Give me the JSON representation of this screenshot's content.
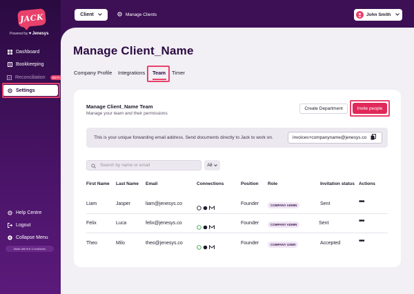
{
  "brand": {
    "logo_text": "JACK",
    "powered_prefix": "Powered by",
    "powered_brand": "Jenesys"
  },
  "sidebar": {
    "items": [
      {
        "label": "Dashboard",
        "icon": "grid-icon"
      },
      {
        "label": "Bookkeeping",
        "icon": "book-icon"
      },
      {
        "label": "Reconciliation",
        "icon": "reconcile-icon",
        "badge": "BETA"
      },
      {
        "label": "Settings",
        "icon": "gear-icon"
      }
    ],
    "bottom_items": [
      {
        "label": "Help Centre",
        "icon": "gear-icon"
      },
      {
        "label": "Logout",
        "icon": "logout-icon"
      },
      {
        "label": "Collapse Menu",
        "icon": "collapse-icon"
      }
    ],
    "made_with": "Made with ♥ in 3 continents"
  },
  "topbar": {
    "client_label": "Client",
    "manage_clients": "Manage Clients",
    "user_name": "John Smith"
  },
  "page": {
    "title": "Manage Client_Name",
    "tabs": [
      "Company Profile",
      "Integrations",
      "Team",
      "Timer"
    ]
  },
  "team": {
    "title": "Manage Client_Name Team",
    "subtitle": "Manage your  team and their permissions",
    "create_department": "Create Department",
    "invite_people": "Invite people",
    "email_notice": "This is your unique forwarding email address. Send documents directly to Jack to work on.",
    "forward_email": "invoices+companyname@jenesys.co",
    "search_placeholder": "Search by name or email",
    "filter_value": "All",
    "columns": [
      "First Name",
      "Last Name",
      "Email",
      "Connections",
      "Position",
      "Role",
      "Invitation status",
      "Actions"
    ],
    "rows": [
      {
        "first": "Liam",
        "last": "Jasper",
        "email": "liam@jenesys.co",
        "position": "Founder",
        "role": "COMPANY ADMIN",
        "status": "Sent"
      },
      {
        "first": "Felix",
        "last": "Luca",
        "email": "felix@jenesys.co",
        "position": "Founder",
        "role": "COMPANY ADMIN",
        "status": "Sent"
      },
      {
        "first": "Theo",
        "last": "Milo",
        "email": "theo@jenesys.co",
        "position": "Founder",
        "role": "COMPANY USER",
        "status": "Accepted"
      }
    ],
    "actions_glyph": "•••"
  },
  "colors": {
    "accent": "#e8416b",
    "sidebar_bg": "#3d1055",
    "title": "#2a0a40"
  }
}
